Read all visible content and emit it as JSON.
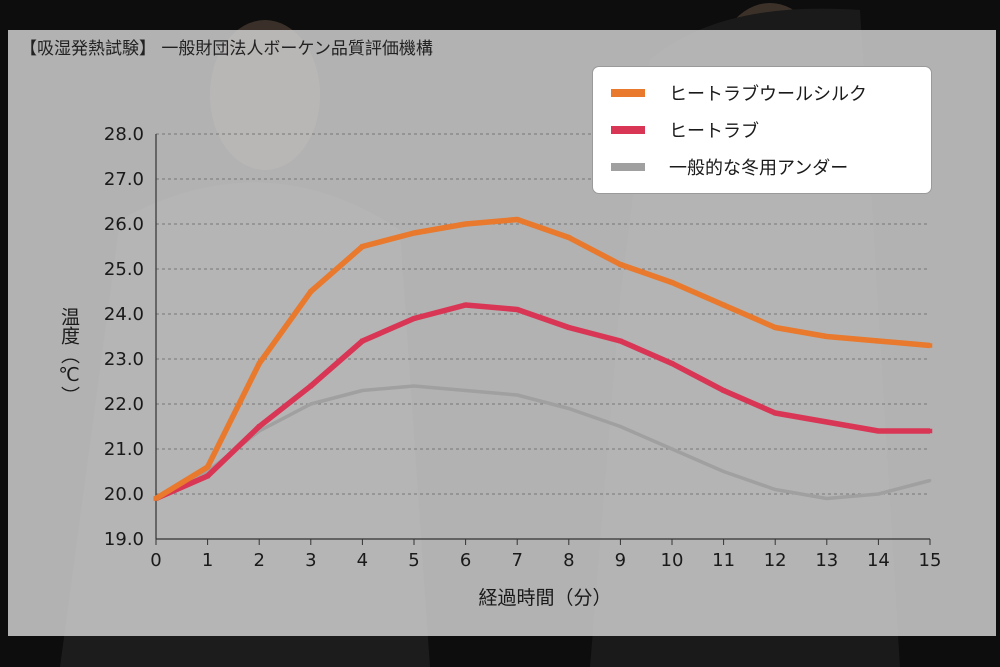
{
  "source_note": "【吸湿発熱試験】 一般財団法人ボーケン品質評価機構",
  "colors": {
    "background": "#0d0d0d",
    "panel": "#cecece",
    "grid": "#777777"
  },
  "chart_data": {
    "type": "line",
    "xlabel": "経過時間（分）",
    "ylabel": "温度（℃）",
    "x": [
      0,
      1,
      2,
      3,
      4,
      5,
      6,
      7,
      8,
      9,
      10,
      11,
      12,
      13,
      14,
      15
    ],
    "xlim": [
      0,
      15
    ],
    "ylim": [
      19.0,
      28.0
    ],
    "yticks": [
      "19.0",
      "20.0",
      "21.0",
      "22.0",
      "23.0",
      "24.0",
      "25.0",
      "26.0",
      "27.0",
      "28.0"
    ],
    "grid": "horizontal dashed",
    "legend_position": "top-right",
    "series": [
      {
        "name": "ヒートラブウールシルク",
        "color": "#e8792d",
        "values": [
          19.9,
          20.6,
          22.9,
          24.5,
          25.5,
          25.8,
          26.0,
          26.1,
          25.7,
          25.1,
          24.7,
          24.2,
          23.7,
          23.5,
          23.4,
          23.3
        ]
      },
      {
        "name": "ヒートラブ",
        "color": "#d93655",
        "values": [
          19.9,
          20.4,
          21.5,
          22.4,
          23.4,
          23.9,
          24.2,
          24.1,
          23.7,
          23.4,
          22.9,
          22.3,
          21.8,
          21.6,
          21.4,
          21.4
        ]
      },
      {
        "name": "一般的な冬用アンダー",
        "color": "#a0a0a0",
        "values": [
          19.9,
          20.5,
          21.4,
          22.0,
          22.3,
          22.4,
          22.3,
          22.2,
          21.9,
          21.5,
          21.0,
          20.5,
          20.1,
          19.9,
          20.0,
          20.3
        ]
      }
    ]
  }
}
